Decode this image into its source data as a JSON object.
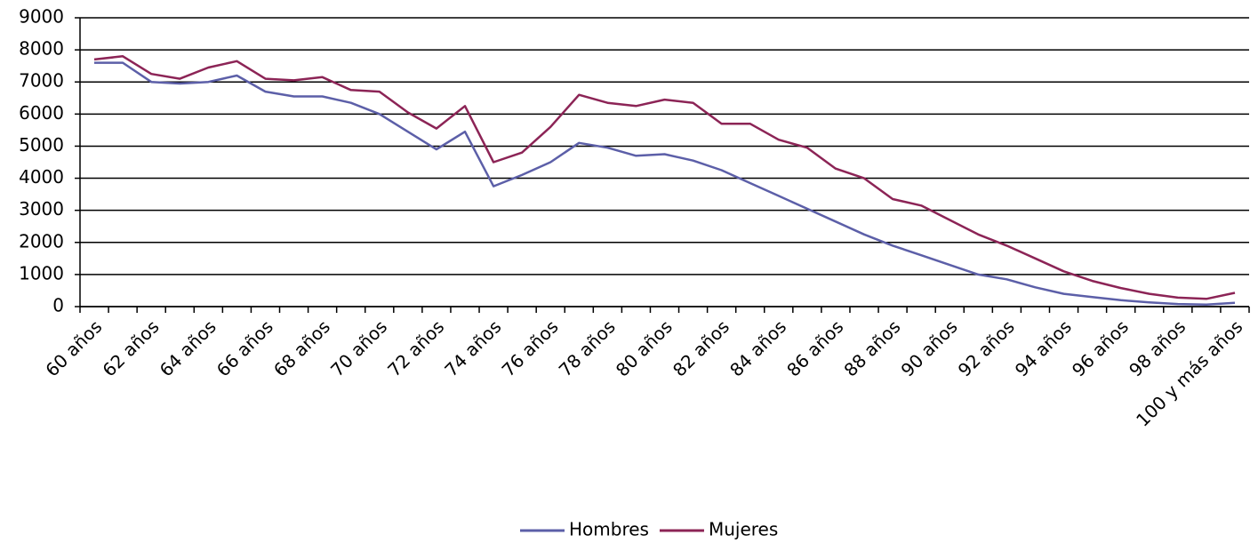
{
  "chart_data": {
    "type": "line",
    "categories": [
      "60 años",
      null,
      "62 años",
      null,
      "64 años",
      null,
      "66 años",
      null,
      "68 años",
      null,
      "70 años",
      null,
      "72 años",
      null,
      "74 años",
      null,
      "76 años",
      null,
      "78 años",
      null,
      "80 años",
      null,
      "82 años",
      null,
      "84 años",
      null,
      "86 años",
      null,
      "88 años",
      null,
      "90 años",
      null,
      "92 años",
      null,
      "94 años",
      null,
      "96 años",
      null,
      "98 años",
      null,
      "100 y más años"
    ],
    "series": [
      {
        "name": "Hombres",
        "color": "#5c5fa8",
        "values": [
          7600,
          7600,
          7000,
          6950,
          7000,
          7200,
          6700,
          6550,
          6550,
          6350,
          6000,
          5450,
          4900,
          5450,
          3750,
          4100,
          4500,
          5100,
          4950,
          4700,
          4750,
          4550,
          4250,
          3850,
          3450,
          3050,
          2650,
          2250,
          1900,
          1600,
          1300,
          1000,
          850,
          600,
          400,
          300,
          200,
          130,
          80,
          60,
          120
        ]
      },
      {
        "name": "Mujeres",
        "color": "#8c2456",
        "values": [
          7700,
          7800,
          7250,
          7100,
          7450,
          7650,
          7100,
          7050,
          7150,
          6750,
          6700,
          6050,
          5550,
          6250,
          4500,
          4800,
          5600,
          6600,
          6350,
          6250,
          6450,
          6350,
          5700,
          5700,
          5200,
          4950,
          4300,
          4000,
          3350,
          3150,
          2700,
          2250,
          1900,
          1500,
          1100,
          800,
          580,
          400,
          280,
          240,
          430
        ]
      }
    ],
    "ylim": [
      0,
      9000
    ],
    "yticks": [
      0,
      1000,
      2000,
      3000,
      4000,
      5000,
      6000,
      7000,
      8000,
      9000
    ],
    "grid": true,
    "legend": "bottom"
  }
}
